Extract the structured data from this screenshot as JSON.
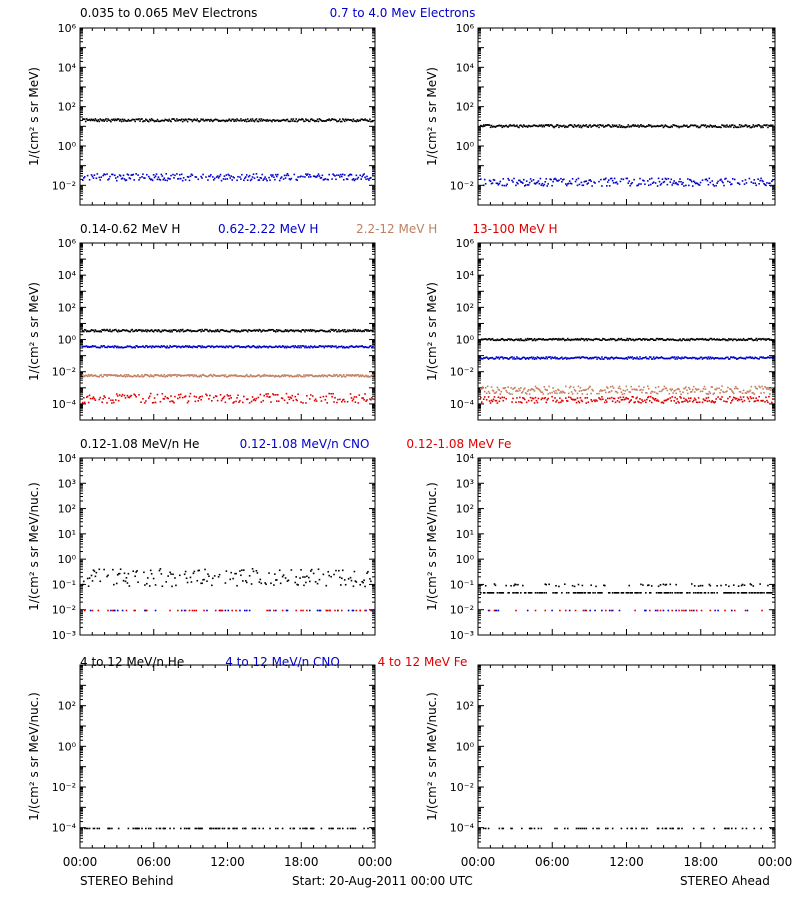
{
  "footer": {
    "left_label": "STEREO Behind",
    "center_label": "Start: 20-Aug-2011 00:00 UTC",
    "right_label": "STEREO Ahead"
  },
  "x_tick_labels": [
    "00:00",
    "06:00",
    "12:00",
    "18:00",
    "00:00"
  ],
  "chart_data": [
    {
      "type": "scatter",
      "row": 0,
      "side": "behind",
      "ylabel": "1/(cm² s sr MeV)",
      "yscale": "log",
      "ylim_exp": [
        -3,
        6
      ],
      "ytick_exponents": [
        -2,
        0,
        2,
        4,
        6
      ],
      "header": [
        {
          "text": "0.035 to 0.065 MeV Electrons",
          "color": "#000000"
        },
        {
          "text": "0.7 to 4.0 Mev Electrons",
          "color": "#0000cc"
        }
      ],
      "series": [
        {
          "color": "#000000",
          "level_log10": 1.35,
          "spread": 0.07,
          "density": 1.0
        },
        {
          "color": "#0000cc",
          "level_log10": -1.55,
          "spread": 0.18,
          "density": 0.8
        }
      ]
    },
    {
      "type": "scatter",
      "row": 0,
      "side": "ahead",
      "ylabel": "1/(cm² s sr MeV)",
      "yscale": "log",
      "ylim_exp": [
        -3,
        6
      ],
      "ytick_exponents": [
        -2,
        0,
        2,
        4,
        6
      ],
      "header": [],
      "series": [
        {
          "color": "#000000",
          "level_log10": 1.05,
          "spread": 0.07,
          "density": 1.0
        },
        {
          "color": "#0000cc",
          "level_log10": -1.8,
          "spread": 0.2,
          "density": 0.8
        }
      ]
    },
    {
      "type": "scatter",
      "row": 1,
      "side": "behind",
      "ylabel": "1/(cm² s sr MeV)",
      "yscale": "log",
      "ylim_exp": [
        -5,
        6
      ],
      "ytick_exponents": [
        -4,
        -2,
        0,
        2,
        4,
        6
      ],
      "header": [
        {
          "text": "0.14-0.62 MeV H",
          "color": "#000000"
        },
        {
          "text": "0.62-2.22 MeV H",
          "color": "#0000cc"
        },
        {
          "text": "2.2-12 MeV H",
          "color": "#c08060"
        },
        {
          "text": "13-100 MeV H",
          "color": "#dd0000"
        }
      ],
      "series": [
        {
          "color": "#000000",
          "level_log10": 0.6,
          "spread": 0.07,
          "density": 1.0
        },
        {
          "color": "#0000cc",
          "level_log10": -0.4,
          "spread": 0.06,
          "density": 1.0
        },
        {
          "color": "#c08060",
          "level_log10": -2.2,
          "spread": 0.07,
          "density": 1.0
        },
        {
          "color": "#dd0000",
          "level_log10": -3.6,
          "spread": 0.3,
          "density": 0.7
        }
      ]
    },
    {
      "type": "scatter",
      "row": 1,
      "side": "ahead",
      "ylabel": "1/(cm² s sr MeV)",
      "yscale": "log",
      "ylim_exp": [
        -5,
        6
      ],
      "ytick_exponents": [
        -4,
        -2,
        0,
        2,
        4,
        6
      ],
      "header": [],
      "series": [
        {
          "color": "#000000",
          "level_log10": 0.05,
          "spread": 0.06,
          "density": 1.0
        },
        {
          "color": "#0000cc",
          "level_log10": -1.1,
          "spread": 0.07,
          "density": 1.0
        },
        {
          "color": "#c08060",
          "level_log10": -3.1,
          "spread": 0.25,
          "density": 0.9
        },
        {
          "color": "#dd0000",
          "level_log10": -3.7,
          "spread": 0.2,
          "density": 0.8
        }
      ]
    },
    {
      "type": "scatter",
      "row": 2,
      "side": "behind",
      "ylabel": "1/(cm² s sr MeV/nuc.)",
      "yscale": "log",
      "ylim_exp": [
        -3,
        4
      ],
      "ytick_exponents": [
        -3,
        -2,
        -1,
        0,
        1,
        2,
        3,
        4
      ],
      "header": [
        {
          "text": "0.12-1.08 MeV/n He",
          "color": "#000000"
        },
        {
          "text": "0.12-1.08 MeV/n CNO",
          "color": "#0000cc"
        },
        {
          "text": "0.12-1.08 MeV Fe",
          "color": "#dd0000"
        }
      ],
      "series": [
        {
          "color": "#000000",
          "level_log10": -0.7,
          "spread": 0.35,
          "density": 0.6
        },
        {
          "color": "#0000cc",
          "level_log10": -2.0,
          "spread": 0.0,
          "density": 0.12
        },
        {
          "color": "#dd0000",
          "level_log10": -2.0,
          "spread": 0.0,
          "density": 0.12
        }
      ]
    },
    {
      "type": "scatter",
      "row": 2,
      "side": "ahead",
      "ylabel": "1/(cm² s sr MeV/nuc.)",
      "yscale": "log",
      "ylim_exp": [
        -3,
        4
      ],
      "ytick_exponents": [
        -3,
        -2,
        -1,
        0,
        1,
        2,
        3,
        4
      ],
      "header": [],
      "series": [
        {
          "color": "#000000",
          "level_log10": -1.3,
          "spread": 0.0,
          "density": 0.55
        },
        {
          "color": "#000000",
          "level_log10": -1.0,
          "spread": 0.05,
          "density": 0.2
        },
        {
          "color": "#0000cc",
          "level_log10": -2.0,
          "spread": 0.0,
          "density": 0.1
        },
        {
          "color": "#dd0000",
          "level_log10": -2.0,
          "spread": 0.0,
          "density": 0.1
        }
      ]
    },
    {
      "type": "scatter",
      "row": 3,
      "side": "behind",
      "ylabel": "1/(cm² s sr MeV/nuc.)",
      "yscale": "log",
      "ylim_exp": [
        -5,
        4
      ],
      "ytick_exponents": [
        -4,
        -2,
        0,
        2
      ],
      "header": [
        {
          "text": "4 to 12 MeV/n He",
          "color": "#000000"
        },
        {
          "text": "4 to 12 MeV/n CNO",
          "color": "#0000cc"
        },
        {
          "text": "4 to 12 MeV Fe",
          "color": "#dd0000"
        }
      ],
      "series": [
        {
          "color": "#000000",
          "level_log10": -4.0,
          "spread": 0.0,
          "density": 0.35
        }
      ]
    },
    {
      "type": "scatter",
      "row": 3,
      "side": "ahead",
      "ylabel": "1/(cm² s sr MeV/nuc.)",
      "yscale": "log",
      "ylim_exp": [
        -5,
        4
      ],
      "ytick_exponents": [
        -4,
        -2,
        0,
        2
      ],
      "header": [],
      "series": [
        {
          "color": "#000000",
          "level_log10": -4.0,
          "spread": 0.0,
          "density": 0.2
        }
      ]
    }
  ]
}
